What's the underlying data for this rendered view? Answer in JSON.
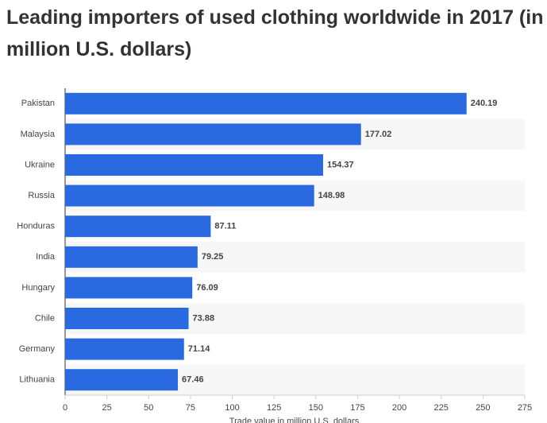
{
  "chart_data": {
    "type": "bar",
    "orientation": "horizontal",
    "title": "Leading importers of used clothing worldwide in 2017 (in million U.S. dollars)",
    "x_label": "Trade value in million U.S. dollars",
    "categories": [
      "Pakistan",
      "Malaysia",
      "Ukraine",
      "Russia",
      "Honduras",
      "India",
      "Hungary",
      "Chile",
      "Germany",
      "Lithuania"
    ],
    "values": [
      240.19,
      177.02,
      154.37,
      148.98,
      87.11,
      79.25,
      76.09,
      73.88,
      71.14,
      67.46
    ],
    "value_labels": [
      "240.19",
      "177.02",
      "154.37",
      "148.98",
      "87.11",
      "79.25",
      "76.09",
      "73.88",
      "71.14",
      "67.46"
    ],
    "color": "#2a6ae0",
    "xlim": [
      0,
      275
    ],
    "xticks": [
      0,
      25,
      50,
      75,
      100,
      125,
      150,
      175,
      200,
      225,
      250,
      275
    ]
  }
}
